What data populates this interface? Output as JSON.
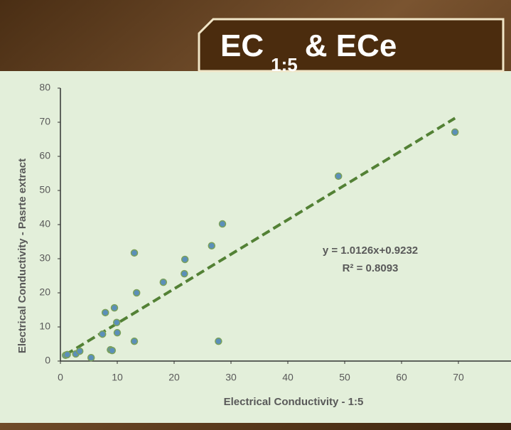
{
  "header": {
    "title": "EC",
    "title_subscript": "1:5",
    "title_suffix": "& ECe"
  },
  "chart_data": {
    "type": "scatter",
    "x_label": "Electrical Conductivity - 1:5",
    "y_label": "Electrical Conductivity - Pasrte extract",
    "series": [
      {
        "name": "EC",
        "color": "#5b8fb9",
        "x": [
          0.9,
          1.2,
          2.7,
          3.4,
          5.4,
          7.4,
          7.9,
          8.8,
          9.1,
          9.5,
          9.9,
          10.0,
          13.0,
          13.0,
          13.4,
          18.1,
          21.8,
          21.9,
          26.6,
          27.8,
          28.5,
          48.9,
          69.4
        ],
        "values": [
          1.7,
          1.9,
          2.1,
          2.9,
          1.0,
          7.9,
          14.2,
          3.3,
          3.1,
          15.6,
          11.3,
          8.3,
          31.7,
          5.8,
          20.0,
          23.1,
          25.6,
          29.8,
          33.8,
          5.8,
          40.2,
          54.2,
          67.1
        ]
      }
    ],
    "trendline": {
      "slope": 1.0126,
      "intercept": 0.9232,
      "x_range": [
        0.9,
        69.4
      ],
      "color": "#538135",
      "equation": "y = 1.0126x+0.9232",
      "r_squared": "R² = 0.8093"
    },
    "xlim": [
      0,
      80
    ],
    "ylim": [
      0,
      80
    ],
    "xticks": [
      0,
      10,
      20,
      30,
      40,
      50,
      60,
      70
    ],
    "yticks": [
      0,
      10,
      20,
      30,
      40,
      50,
      60,
      70,
      80
    ],
    "grid": false
  }
}
